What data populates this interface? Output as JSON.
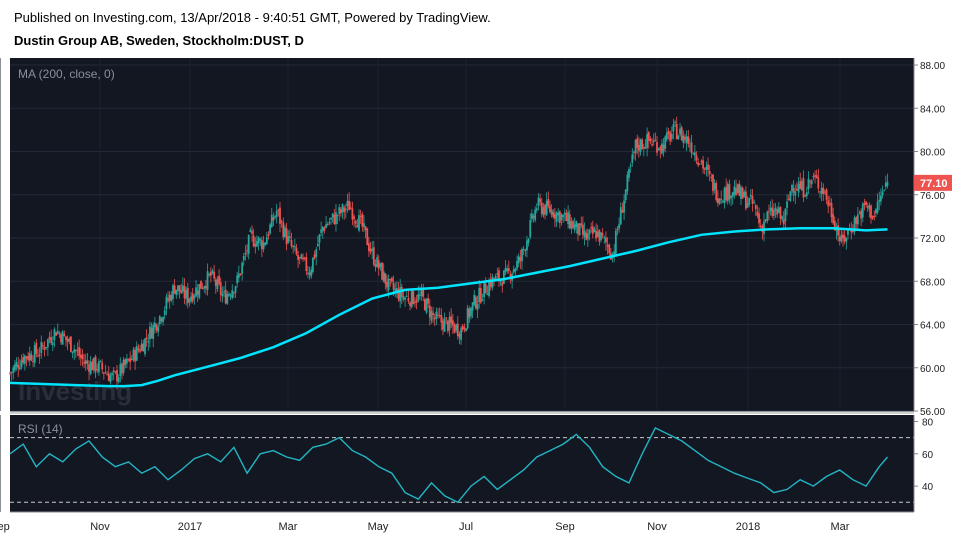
{
  "header": {
    "published": "Published on Investing.com, 13/Apr/2018 - 9:40:51 GMT, Powered by TradingView.",
    "title": "Dustin Group AB, Sweden, Stockholm:DUST, D"
  },
  "watermark": "Investing",
  "colors": {
    "background": "#131722",
    "up": "#26a69a",
    "down": "#ef5350",
    "ma": "#00e5ff",
    "rsi": "#22b5c4"
  },
  "chart_data": [
    {
      "type": "candlestick",
      "indicator_label": "MA (200, close, 0)",
      "last_price": "77.10",
      "y_ticks": [
        "88.00",
        "84.00",
        "80.00",
        "76.00",
        "72.00",
        "68.00",
        "64.00",
        "60.00",
        "56.00"
      ],
      "ylim": [
        56,
        88
      ],
      "x_ticks": [
        "Sep",
        "Nov",
        "2017",
        "Mar",
        "May",
        "Jul",
        "Sep",
        "Nov",
        "2018",
        "Mar"
      ],
      "close_path": [
        [
          0,
          59.5
        ],
        [
          8,
          61
        ],
        [
          18,
          61.5
        ],
        [
          28,
          63.5
        ],
        [
          38,
          62
        ],
        [
          45,
          60.5
        ],
        [
          55,
          60
        ],
        [
          63,
          59
        ],
        [
          72,
          60.5
        ],
        [
          82,
          62.5
        ],
        [
          92,
          65
        ],
        [
          100,
          67.5
        ],
        [
          108,
          66.5
        ],
        [
          115,
          67.5
        ],
        [
          122,
          68.5
        ],
        [
          130,
          66.5
        ],
        [
          138,
          68
        ],
        [
          146,
          72
        ],
        [
          154,
          71.5
        ],
        [
          162,
          74.5
        ],
        [
          168,
          72
        ],
        [
          175,
          70
        ],
        [
          182,
          69
        ],
        [
          190,
          73
        ],
        [
          198,
          74
        ],
        [
          206,
          75
        ],
        [
          214,
          73
        ],
        [
          220,
          70.5
        ],
        [
          230,
          67.5
        ],
        [
          240,
          66.5
        ],
        [
          250,
          66.5
        ],
        [
          258,
          64.5
        ],
        [
          266,
          64
        ],
        [
          274,
          63.5
        ],
        [
          282,
          66
        ],
        [
          292,
          68
        ],
        [
          302,
          68.5
        ],
        [
          310,
          70
        ],
        [
          320,
          75
        ],
        [
          330,
          74.5
        ],
        [
          340,
          73.5
        ],
        [
          350,
          72
        ],
        [
          356,
          72.5
        ],
        [
          362,
          71.5
        ],
        [
          366,
          70.5
        ],
        [
          372,
          75
        ],
        [
          380,
          80.5
        ],
        [
          388,
          81
        ],
        [
          396,
          80.5
        ],
        [
          404,
          82
        ],
        [
          412,
          81
        ],
        [
          420,
          79
        ],
        [
          430,
          76
        ],
        [
          440,
          76.5
        ],
        [
          447,
          75.5
        ],
        [
          452,
          75
        ],
        [
          456,
          73
        ],
        [
          460,
          74
        ],
        [
          465,
          74.5
        ],
        [
          470,
          73.5
        ],
        [
          475,
          77
        ],
        [
          482,
          76.5
        ],
        [
          488,
          77.5
        ],
        [
          494,
          76.5
        ],
        [
          500,
          74
        ],
        [
          505,
          71.5
        ],
        [
          510,
          72.8
        ],
        [
          515,
          74
        ],
        [
          520,
          75
        ],
        [
          525,
          74
        ],
        [
          528,
          75.5
        ],
        [
          533,
          77.1
        ]
      ]
    },
    {
      "type": "line",
      "series": [
        {
          "name": "MA (200, close, 0)"
        }
      ],
      "x": [
        0,
        20,
        40,
        60,
        70,
        80,
        90,
        100,
        120,
        140,
        160,
        180,
        200,
        220,
        240,
        260,
        280,
        300,
        320,
        340,
        360,
        380,
        400,
        420,
        440,
        460,
        480,
        500,
        520,
        533
      ],
      "values": [
        58.6,
        58.5,
        58.4,
        58.3,
        58.3,
        58.4,
        58.8,
        59.3,
        60.1,
        60.9,
        61.9,
        63.2,
        64.9,
        66.4,
        67.2,
        67.4,
        67.8,
        68.2,
        68.8,
        69.4,
        70.1,
        70.8,
        71.6,
        72.3,
        72.6,
        72.8,
        72.9,
        72.9,
        72.7,
        72.8
      ]
    },
    {
      "type": "line",
      "indicator_label": "RSI (14)",
      "series": [
        {
          "name": "RSI (14)"
        }
      ],
      "y_ticks": [
        "80",
        "60",
        "40"
      ],
      "ylim": [
        24,
        84
      ],
      "levels": [
        70,
        30
      ],
      "x": [
        0,
        8,
        16,
        24,
        32,
        40,
        48,
        56,
        64,
        72,
        80,
        88,
        96,
        104,
        112,
        120,
        128,
        136,
        144,
        152,
        160,
        168,
        176,
        184,
        192,
        200,
        208,
        216,
        224,
        232,
        240,
        248,
        256,
        264,
        272,
        280,
        288,
        296,
        304,
        312,
        320,
        328,
        336,
        344,
        352,
        360,
        368,
        376,
        384,
        392,
        400,
        408,
        416,
        424,
        432,
        440,
        448,
        456,
        464,
        472,
        480,
        488,
        496,
        504,
        512,
        520,
        528,
        533
      ],
      "values": [
        60,
        66,
        52,
        60,
        55,
        63,
        68,
        58,
        52,
        55,
        48,
        52,
        44,
        50,
        57,
        60,
        55,
        64,
        48,
        60,
        62,
        58,
        56,
        64,
        66,
        70,
        62,
        58,
        52,
        48,
        36,
        32,
        42,
        34,
        30,
        40,
        46,
        38,
        44,
        50,
        58,
        62,
        66,
        72,
        64,
        52,
        46,
        42,
        60,
        76,
        72,
        68,
        62,
        56,
        52,
        48,
        45,
        42,
        36,
        38,
        44,
        40,
        46,
        50,
        44,
        40,
        52,
        58
      ]
    }
  ]
}
